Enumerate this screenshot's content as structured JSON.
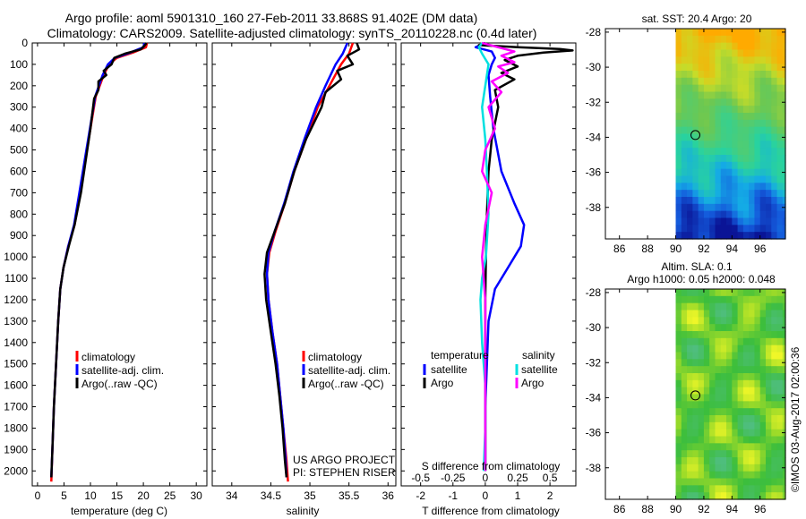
{
  "header": {
    "title_line1": "Argo profile: aoml 5901310_160 27-Feb-2011 33.868S 91.402E (DM data)",
    "title_line2": "Climatology: CARS2009. Satellite-adjusted climatology: synTS_20110228.nc (0.4d later)"
  },
  "chart_data": [
    {
      "id": "temperature",
      "type": "line",
      "xlabel": "temperature (deg C)",
      "xlim": [
        -1,
        32
      ],
      "ylim": [
        2070,
        0
      ],
      "xticks": [
        "0",
        "5",
        "10",
        "15",
        "20",
        "25",
        "30"
      ],
      "xtick_values": [
        0,
        5,
        10,
        15,
        20,
        25,
        30
      ],
      "yticks": [
        "0",
        "100",
        "200",
        "300",
        "400",
        "500",
        "600",
        "700",
        "800",
        "900",
        "1000",
        "1100",
        "1200",
        "1300",
        "1400",
        "1500",
        "1600",
        "1700",
        "1800",
        "1900",
        "2000"
      ],
      "ytick_values": [
        0,
        100,
        200,
        300,
        400,
        500,
        600,
        700,
        800,
        900,
        1000,
        1100,
        1200,
        1300,
        1400,
        1500,
        1600,
        1700,
        1800,
        1900,
        2000
      ],
      "legend": [
        "climatology",
        "satellite-adj. clim.",
        "Argo(..raw -QC)"
      ],
      "series": [
        {
          "name": "climatology",
          "color": "#ff0000",
          "points": [
            [
              20.7,
              0
            ],
            [
              20.5,
              20
            ],
            [
              18,
              45
            ],
            [
              15,
              70
            ],
            [
              13.5,
              100
            ],
            [
              12.5,
              150
            ],
            [
              11,
              250
            ],
            [
              10,
              400
            ],
            [
              9,
              550
            ],
            [
              8,
              700
            ],
            [
              7,
              850
            ],
            [
              5.8,
              950
            ],
            [
              4.9,
              1050
            ],
            [
              4.3,
              1150
            ],
            [
              3.9,
              1300
            ],
            [
              3.5,
              1500
            ],
            [
              3.1,
              1700
            ],
            [
              2.8,
              1900
            ],
            [
              2.6,
              2050
            ]
          ]
        },
        {
          "name": "satellite-adj. clim.",
          "color": "#0000ff",
          "points": [
            [
              20.2,
              0
            ],
            [
              20,
              20
            ],
            [
              17.5,
              45
            ],
            [
              14.6,
              70
            ],
            [
              13.3,
              100
            ],
            [
              12.3,
              150
            ],
            [
              10.9,
              250
            ],
            [
              9.9,
              400
            ],
            [
              8.9,
              550
            ],
            [
              7.9,
              700
            ],
            [
              6.9,
              850
            ],
            [
              5.8,
              950
            ],
            [
              4.9,
              1050
            ],
            [
              4.3,
              1150
            ],
            [
              3.9,
              1300
            ],
            [
              3.5,
              1500
            ],
            [
              3.1,
              1700
            ],
            [
              2.8,
              1900
            ],
            [
              2.6,
              2030
            ]
          ]
        },
        {
          "name": "Argo(..raw -QC)",
          "color": "#000000",
          "points": [
            [
              20.6,
              0
            ],
            [
              20.3,
              10
            ],
            [
              19.5,
              30
            ],
            [
              16.5,
              50
            ],
            [
              14.5,
              70
            ],
            [
              14,
              100
            ],
            [
              12.5,
              130
            ],
            [
              13,
              150
            ],
            [
              11.5,
              180
            ],
            [
              11.5,
              220
            ],
            [
              10.7,
              260
            ],
            [
              10,
              400
            ],
            [
              9.1,
              550
            ],
            [
              8.2,
              700
            ],
            [
              7,
              850
            ],
            [
              5.9,
              950
            ],
            [
              4.9,
              1050
            ],
            [
              4.3,
              1150
            ],
            [
              3.9,
              1300
            ],
            [
              3.5,
              1500
            ],
            [
              3.1,
              1700
            ],
            [
              2.8,
              1900
            ],
            [
              2.6,
              2030
            ]
          ]
        }
      ]
    },
    {
      "id": "salinity",
      "type": "line",
      "xlabel": "salinity",
      "xlim": [
        33.75,
        36.1
      ],
      "ylim": [
        2070,
        0
      ],
      "xticks": [
        "34",
        "34.5",
        "35",
        "35.5",
        "36"
      ],
      "xtick_values": [
        34,
        34.5,
        35,
        35.5,
        36
      ],
      "legend": [
        "climatology",
        "satellite-adj. clim.",
        "Argo(..raw -QC)"
      ],
      "series": [
        {
          "name": "climatology",
          "color": "#ff0000",
          "points": [
            [
              35.55,
              0
            ],
            [
              35.5,
              50
            ],
            [
              35.4,
              100
            ],
            [
              35.25,
              200
            ],
            [
              35.1,
              300
            ],
            [
              34.95,
              450
            ],
            [
              34.8,
              600
            ],
            [
              34.68,
              750
            ],
            [
              34.56,
              880
            ],
            [
              34.48,
              980
            ],
            [
              34.45,
              1080
            ],
            [
              34.47,
              1200
            ],
            [
              34.52,
              1350
            ],
            [
              34.58,
              1500
            ],
            [
              34.62,
              1650
            ],
            [
              34.66,
              1800
            ],
            [
              34.7,
              1950
            ],
            [
              34.72,
              2050
            ]
          ]
        },
        {
          "name": "satellite-adj. clim.",
          "color": "#0000ff",
          "points": [
            [
              35.48,
              0
            ],
            [
              35.42,
              50
            ],
            [
              35.33,
              100
            ],
            [
              35.2,
              200
            ],
            [
              35.08,
              300
            ],
            [
              34.93,
              450
            ],
            [
              34.79,
              600
            ],
            [
              34.67,
              750
            ],
            [
              34.55,
              880
            ],
            [
              34.47,
              980
            ],
            [
              34.45,
              1080
            ],
            [
              34.47,
              1200
            ],
            [
              34.52,
              1350
            ],
            [
              34.58,
              1500
            ],
            [
              34.62,
              1650
            ],
            [
              34.66,
              1800
            ],
            [
              34.69,
              1950
            ],
            [
              34.7,
              2030
            ]
          ]
        },
        {
          "name": "Argo(..raw -QC)",
          "color": "#000000",
          "points": [
            [
              35.6,
              0
            ],
            [
              35.63,
              30
            ],
            [
              35.48,
              60
            ],
            [
              35.55,
              100
            ],
            [
              35.35,
              130
            ],
            [
              35.4,
              170
            ],
            [
              35.2,
              230
            ],
            [
              35.15,
              300
            ],
            [
              34.95,
              450
            ],
            [
              34.8,
              600
            ],
            [
              34.68,
              750
            ],
            [
              34.55,
              880
            ],
            [
              34.45,
              980
            ],
            [
              34.42,
              1080
            ],
            [
              34.44,
              1200
            ],
            [
              34.5,
              1350
            ],
            [
              34.56,
              1500
            ],
            [
              34.61,
              1650
            ],
            [
              34.65,
              1800
            ],
            [
              34.68,
              1950
            ],
            [
              34.7,
              2030
            ]
          ]
        }
      ],
      "annotation": [
        "US ARGO PROJECT",
        "PI: STEPHEN RISER"
      ]
    },
    {
      "id": "difference",
      "type": "line",
      "xlabel": "T difference from climatology",
      "xlabel_top": "S difference from climatology",
      "xlim": [
        -2.6,
        2.8
      ],
      "ylim": [
        2070,
        0
      ],
      "xticks": [
        "-2",
        "-1",
        "0",
        "1",
        "2"
      ],
      "xtick_values": [
        -2,
        -1,
        0,
        1,
        2
      ],
      "sticks": [
        "-0.5",
        "-0.25",
        "0",
        "0.25",
        "0.5"
      ],
      "stick_values": [
        -0.5,
        -0.25,
        0,
        0.25,
        0.5
      ],
      "sticks_scale": 4,
      "legend_headers": [
        "temperature",
        "salinity"
      ],
      "legend": [
        "satellite",
        "Argo",
        "satellite",
        "Argo"
      ],
      "series": [
        {
          "name": "temperature satellite",
          "color": "#0000ff",
          "points": [
            [
              0,
              0
            ],
            [
              -0.3,
              20
            ],
            [
              0.2,
              40
            ],
            [
              0.3,
              70
            ],
            [
              0.2,
              100
            ],
            [
              0.1,
              150
            ],
            [
              0.15,
              250
            ],
            [
              0.25,
              400
            ],
            [
              0.5,
              600
            ],
            [
              0.9,
              750
            ],
            [
              1.2,
              850
            ],
            [
              1.1,
              950
            ],
            [
              0.7,
              1050
            ],
            [
              0.3,
              1150
            ],
            [
              0.1,
              1300
            ],
            [
              0.05,
              1500
            ],
            [
              0,
              1700
            ],
            [
              0,
              1900
            ],
            [
              0,
              2000
            ]
          ]
        },
        {
          "name": "temperature Argo",
          "color": "#000000",
          "points": [
            [
              0,
              0
            ],
            [
              -0.2,
              10
            ],
            [
              1,
              20
            ],
            [
              2.3,
              28
            ],
            [
              2.7,
              35
            ],
            [
              1.8,
              45
            ],
            [
              1,
              60
            ],
            [
              0.6,
              80
            ],
            [
              1,
              110
            ],
            [
              0.5,
              140
            ],
            [
              0.9,
              170
            ],
            [
              0.3,
              220
            ],
            [
              0.4,
              300
            ],
            [
              0.2,
              450
            ],
            [
              0.1,
              600
            ],
            [
              0.05,
              800
            ],
            [
              0.02,
              1000
            ],
            [
              0,
              1200
            ],
            [
              0,
              1500
            ],
            [
              0,
              1800
            ],
            [
              0,
              2000
            ]
          ]
        },
        {
          "name": "salinity satellite",
          "color": "#00e0e0",
          "points": [
            [
              -0.1,
              0
            ],
            [
              -0.2,
              20
            ],
            [
              -0.1,
              50
            ],
            [
              0.1,
              100
            ],
            [
              0,
              200
            ],
            [
              -0.1,
              300
            ],
            [
              0,
              450
            ],
            [
              0.05,
              600
            ],
            [
              0.1,
              800
            ],
            [
              0.02,
              1000
            ],
            [
              -0.1,
              1100
            ],
            [
              -0.15,
              1200
            ],
            [
              -0.1,
              1400
            ],
            [
              0,
              1600
            ],
            [
              0,
              1800
            ],
            [
              -0.05,
              2000
            ]
          ]
        },
        {
          "name": "salinity Argo",
          "color": "#ff00ff",
          "points": [
            [
              -0.1,
              0
            ],
            [
              0.4,
              20
            ],
            [
              0.9,
              40
            ],
            [
              0.5,
              60
            ],
            [
              0.9,
              90
            ],
            [
              0.4,
              110
            ],
            [
              0.7,
              140
            ],
            [
              0.2,
              180
            ],
            [
              0.5,
              230
            ],
            [
              0.1,
              300
            ],
            [
              0.3,
              400
            ],
            [
              0,
              500
            ],
            [
              -0.1,
              600
            ],
            [
              0.2,
              700
            ],
            [
              0,
              850
            ],
            [
              -0.1,
              1000
            ],
            [
              0,
              1200
            ],
            [
              0,
              1500
            ],
            [
              0,
              1800
            ],
            [
              0,
              2000
            ]
          ]
        }
      ]
    },
    {
      "id": "sst-map",
      "type": "heatmap",
      "title": "sat. SST: 20.4 Argo: 20",
      "xticks": [
        "86",
        "88",
        "90",
        "92",
        "94",
        "96"
      ],
      "xtick_values": [
        86,
        88,
        90,
        92,
        94,
        96
      ],
      "yticks": [
        "-28",
        "-30",
        "-32",
        "-34",
        "-36",
        "-38"
      ],
      "ytick_values": [
        -28,
        -30,
        -32,
        -34,
        -36,
        -38
      ],
      "xlim": [
        85,
        97.8
      ],
      "ylim": [
        -39.8,
        -27.8
      ],
      "data_xlim": [
        90,
        97.8
      ],
      "float_position": [
        91.4,
        -33.87
      ]
    },
    {
      "id": "sla-map",
      "type": "heatmap",
      "title_line1": "Altim. SLA: 0.1",
      "title_line2": "Argo h1000: 0.05 h2000: 0.048",
      "xticks": [
        "86",
        "88",
        "90",
        "92",
        "94",
        "96"
      ],
      "xtick_values": [
        86,
        88,
        90,
        92,
        94,
        96
      ],
      "yticks": [
        "-28",
        "-30",
        "-32",
        "-34",
        "-36",
        "-38"
      ],
      "ytick_values": [
        -28,
        -30,
        -32,
        -34,
        -36,
        -38
      ],
      "xlim": [
        85,
        97.8
      ],
      "ylim": [
        -39.8,
        -27.8
      ],
      "data_xlim": [
        90,
        97.8
      ],
      "float_position": [
        91.4,
        -33.87
      ]
    }
  ],
  "footer": {
    "credit": "©IMOS 03-Aug-2017 02:00:36"
  }
}
